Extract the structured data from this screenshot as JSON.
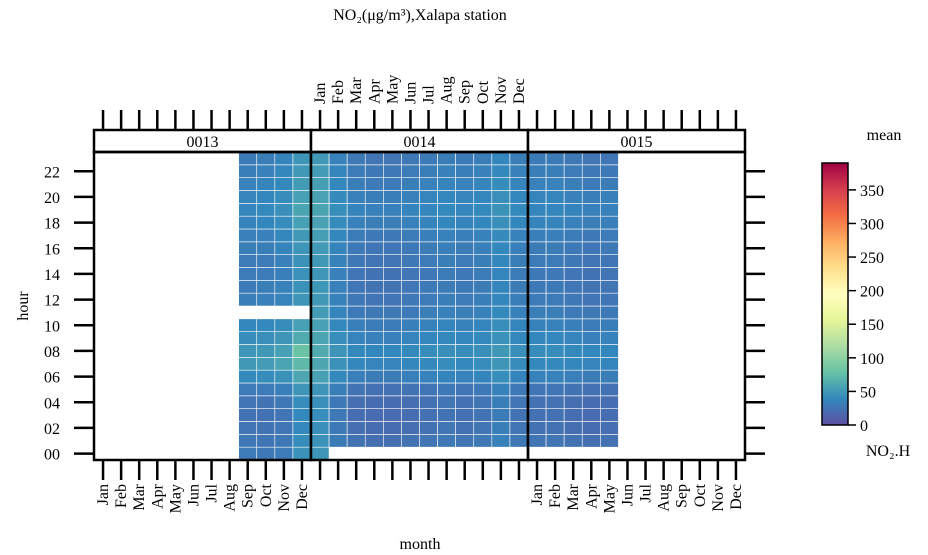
{
  "chart_data": {
    "type": "heatmap",
    "title": "NO₂(μg/m³),Xalapa station",
    "x_label": "month",
    "y_label": "hour",
    "legend_title": "mean",
    "legend_subtitle": "NO₂.H",
    "categories": [
      "Jan",
      "Feb",
      "Mar",
      "Apr",
      "May",
      "Jun",
      "Jul",
      "Aug",
      "Sep",
      "Oct",
      "Nov",
      "Dec"
    ],
    "ylim": [
      -0.5,
      23.5
    ],
    "yticks": [
      {
        "value": 0,
        "label": "00"
      },
      {
        "value": 2,
        "label": "02"
      },
      {
        "value": 4,
        "label": "04"
      },
      {
        "value": 6,
        "label": "06"
      },
      {
        "value": 8,
        "label": "08"
      },
      {
        "value": 10,
        "label": "10"
      },
      {
        "value": 12,
        "label": "12"
      },
      {
        "value": 14,
        "label": "14"
      },
      {
        "value": 16,
        "label": "16"
      },
      {
        "value": 18,
        "label": "18"
      },
      {
        "value": 20,
        "label": "20"
      },
      {
        "value": 22,
        "label": "22"
      }
    ],
    "colorlim": [
      0,
      390
    ],
    "colorticks": [
      0,
      50,
      100,
      150,
      200,
      250,
      300,
      350
    ],
    "colors": [
      "#5E4FA2",
      "#3288BD",
      "#66C2A5",
      "#ABDDA4",
      "#E6F598",
      "#FFFFBF",
      "#FEE08B",
      "#FDAE61",
      "#F46D43",
      "#D53E4F",
      "#9E0142"
    ],
    "panels": [
      {
        "name": "0013",
        "values": [
          [
            null,
            null,
            null,
            null,
            null,
            null,
            null,
            null,
            30,
            28,
            30,
            45
          ],
          [
            null,
            null,
            null,
            null,
            null,
            null,
            null,
            null,
            28,
            26,
            28,
            42
          ],
          [
            null,
            null,
            null,
            null,
            null,
            null,
            null,
            null,
            26,
            25,
            27,
            40
          ],
          [
            null,
            null,
            null,
            null,
            null,
            null,
            null,
            null,
            25,
            24,
            26,
            40
          ],
          [
            null,
            null,
            null,
            null,
            null,
            null,
            null,
            null,
            26,
            25,
            28,
            42
          ],
          [
            null,
            null,
            null,
            null,
            null,
            null,
            null,
            null,
            30,
            30,
            33,
            48
          ],
          [
            null,
            null,
            null,
            null,
            null,
            null,
            null,
            null,
            40,
            42,
            45,
            60
          ],
          [
            null,
            null,
            null,
            null,
            null,
            null,
            null,
            null,
            50,
            52,
            58,
            72
          ],
          [
            null,
            null,
            null,
            null,
            null,
            null,
            null,
            null,
            48,
            50,
            55,
            80
          ],
          [
            null,
            null,
            null,
            null,
            null,
            null,
            null,
            null,
            42,
            44,
            48,
            62
          ],
          [
            null,
            null,
            null,
            null,
            null,
            null,
            null,
            null,
            38,
            40,
            42,
            55
          ],
          [
            null,
            null,
            null,
            null,
            null,
            null,
            null,
            null,
            null,
            null,
            null,
            null
          ],
          [
            null,
            null,
            null,
            null,
            null,
            null,
            null,
            null,
            32,
            34,
            36,
            48
          ],
          [
            null,
            null,
            null,
            null,
            null,
            null,
            null,
            null,
            30,
            32,
            34,
            46
          ],
          [
            null,
            null,
            null,
            null,
            null,
            null,
            null,
            null,
            30,
            30,
            33,
            45
          ],
          [
            null,
            null,
            null,
            null,
            null,
            null,
            null,
            null,
            30,
            30,
            34,
            46
          ],
          [
            null,
            null,
            null,
            null,
            null,
            null,
            null,
            null,
            32,
            32,
            36,
            48
          ],
          [
            null,
            null,
            null,
            null,
            null,
            null,
            null,
            null,
            34,
            34,
            38,
            50
          ],
          [
            null,
            null,
            null,
            null,
            null,
            null,
            null,
            null,
            36,
            38,
            42,
            55
          ],
          [
            null,
            null,
            null,
            null,
            null,
            null,
            null,
            null,
            38,
            40,
            44,
            58
          ],
          [
            null,
            null,
            null,
            null,
            null,
            null,
            null,
            null,
            36,
            38,
            42,
            55
          ],
          [
            null,
            null,
            null,
            null,
            null,
            null,
            null,
            null,
            34,
            36,
            40,
            52
          ],
          [
            null,
            null,
            null,
            null,
            null,
            null,
            null,
            null,
            32,
            34,
            38,
            50
          ],
          [
            null,
            null,
            null,
            null,
            null,
            null,
            null,
            null,
            30,
            32,
            36,
            48
          ]
        ]
      },
      {
        "name": "0014",
        "values": [
          [
            48,
            null,
            null,
            null,
            null,
            null,
            null,
            null,
            null,
            null,
            null,
            null
          ],
          [
            46,
            31,
            24,
            22,
            22,
            24,
            26,
            28,
            26,
            28,
            34,
            28
          ],
          [
            44,
            29,
            22,
            20,
            20,
            22,
            24,
            26,
            24,
            26,
            32,
            26
          ],
          [
            43,
            28,
            21,
            19,
            19,
            21,
            23,
            25,
            23,
            25,
            31,
            25
          ],
          [
            44,
            29,
            22,
            20,
            20,
            22,
            24,
            26,
            24,
            26,
            32,
            26
          ],
          [
            47,
            32,
            25,
            23,
            23,
            25,
            27,
            29,
            27,
            29,
            35,
            29
          ],
          [
            55,
            40,
            33,
            31,
            31,
            33,
            35,
            37,
            35,
            37,
            43,
            37
          ],
          [
            60,
            45,
            38,
            36,
            36,
            38,
            40,
            42,
            40,
            42,
            48,
            42
          ],
          [
            62,
            47,
            40,
            38,
            38,
            40,
            42,
            44,
            42,
            44,
            50,
            44
          ],
          [
            58,
            43,
            36,
            34,
            34,
            36,
            38,
            40,
            38,
            40,
            46,
            40
          ],
          [
            55,
            40,
            33,
            31,
            31,
            33,
            35,
            37,
            35,
            37,
            43,
            37
          ],
          [
            52,
            37,
            30,
            28,
            28,
            30,
            32,
            34,
            32,
            34,
            40,
            34
          ],
          [
            50,
            35,
            28,
            26,
            26,
            28,
            30,
            32,
            30,
            32,
            38,
            32
          ],
          [
            49,
            34,
            27,
            25,
            25,
            27,
            29,
            31,
            29,
            31,
            37,
            31
          ],
          [
            49,
            34,
            27,
            25,
            25,
            27,
            29,
            31,
            29,
            31,
            37,
            31
          ],
          [
            50,
            35,
            28,
            26,
            26,
            28,
            30,
            32,
            30,
            32,
            38,
            32
          ],
          [
            51,
            36,
            29,
            27,
            27,
            29,
            31,
            33,
            31,
            33,
            39,
            33
          ],
          [
            53,
            38,
            31,
            29,
            29,
            31,
            33,
            35,
            33,
            35,
            41,
            35
          ],
          [
            56,
            41,
            34,
            32,
            32,
            34,
            36,
            38,
            36,
            38,
            44,
            38
          ],
          [
            58,
            43,
            36,
            34,
            34,
            36,
            38,
            40,
            38,
            40,
            46,
            40
          ],
          [
            56,
            41,
            34,
            32,
            32,
            34,
            36,
            38,
            36,
            38,
            44,
            38
          ],
          [
            54,
            39,
            32,
            30,
            30,
            32,
            34,
            36,
            34,
            36,
            42,
            36
          ],
          [
            52,
            37,
            30,
            28,
            28,
            30,
            32,
            34,
            32,
            34,
            40,
            34
          ],
          [
            50,
            35,
            28,
            26,
            26,
            28,
            30,
            32,
            30,
            32,
            38,
            32
          ]
        ]
      },
      {
        "name": "0015",
        "values": [
          [
            null,
            null,
            null,
            null,
            null,
            null,
            null,
            null,
            null,
            null,
            null,
            null
          ],
          [
            26,
            26,
            24,
            22,
            23,
            null,
            null,
            null,
            null,
            null,
            null,
            null
          ],
          [
            24,
            24,
            22,
            20,
            21,
            null,
            null,
            null,
            null,
            null,
            null,
            null
          ],
          [
            23,
            23,
            21,
            19,
            20,
            null,
            null,
            null,
            null,
            null,
            null,
            null
          ],
          [
            24,
            24,
            22,
            20,
            21,
            null,
            null,
            null,
            null,
            null,
            null,
            null
          ],
          [
            27,
            27,
            25,
            23,
            24,
            null,
            null,
            null,
            null,
            null,
            null,
            null
          ],
          [
            35,
            35,
            33,
            31,
            32,
            null,
            null,
            null,
            null,
            null,
            null,
            null
          ],
          [
            40,
            40,
            38,
            36,
            37,
            null,
            null,
            null,
            null,
            null,
            null,
            null
          ],
          [
            42,
            42,
            40,
            38,
            39,
            null,
            null,
            null,
            null,
            null,
            null,
            null
          ],
          [
            38,
            38,
            36,
            34,
            35,
            null,
            null,
            null,
            null,
            null,
            null,
            null
          ],
          [
            35,
            35,
            33,
            31,
            32,
            null,
            null,
            null,
            null,
            null,
            null,
            null
          ],
          [
            32,
            32,
            30,
            28,
            29,
            null,
            null,
            null,
            null,
            null,
            null,
            null
          ],
          [
            30,
            30,
            28,
            26,
            27,
            null,
            null,
            null,
            null,
            null,
            null,
            null
          ],
          [
            29,
            29,
            27,
            25,
            26,
            null,
            null,
            null,
            null,
            null,
            null,
            null
          ],
          [
            29,
            29,
            27,
            25,
            26,
            null,
            null,
            null,
            null,
            null,
            null,
            null
          ],
          [
            30,
            30,
            28,
            26,
            27,
            null,
            null,
            null,
            null,
            null,
            null,
            null
          ],
          [
            31,
            31,
            29,
            27,
            28,
            null,
            null,
            null,
            null,
            null,
            null,
            null
          ],
          [
            33,
            33,
            31,
            29,
            30,
            null,
            null,
            null,
            null,
            null,
            null,
            null
          ],
          [
            36,
            36,
            34,
            32,
            33,
            null,
            null,
            null,
            null,
            null,
            null,
            null
          ],
          [
            38,
            38,
            36,
            34,
            35,
            null,
            null,
            null,
            null,
            null,
            null,
            null
          ],
          [
            36,
            36,
            34,
            32,
            33,
            null,
            null,
            null,
            null,
            null,
            null,
            null
          ],
          [
            34,
            34,
            32,
            30,
            31,
            null,
            null,
            null,
            null,
            null,
            null,
            null
          ],
          [
            32,
            32,
            30,
            28,
            29,
            null,
            null,
            null,
            null,
            null,
            null,
            null
          ],
          [
            30,
            30,
            28,
            26,
            27,
            null,
            null,
            null,
            null,
            null,
            null,
            null
          ]
        ]
      }
    ]
  }
}
